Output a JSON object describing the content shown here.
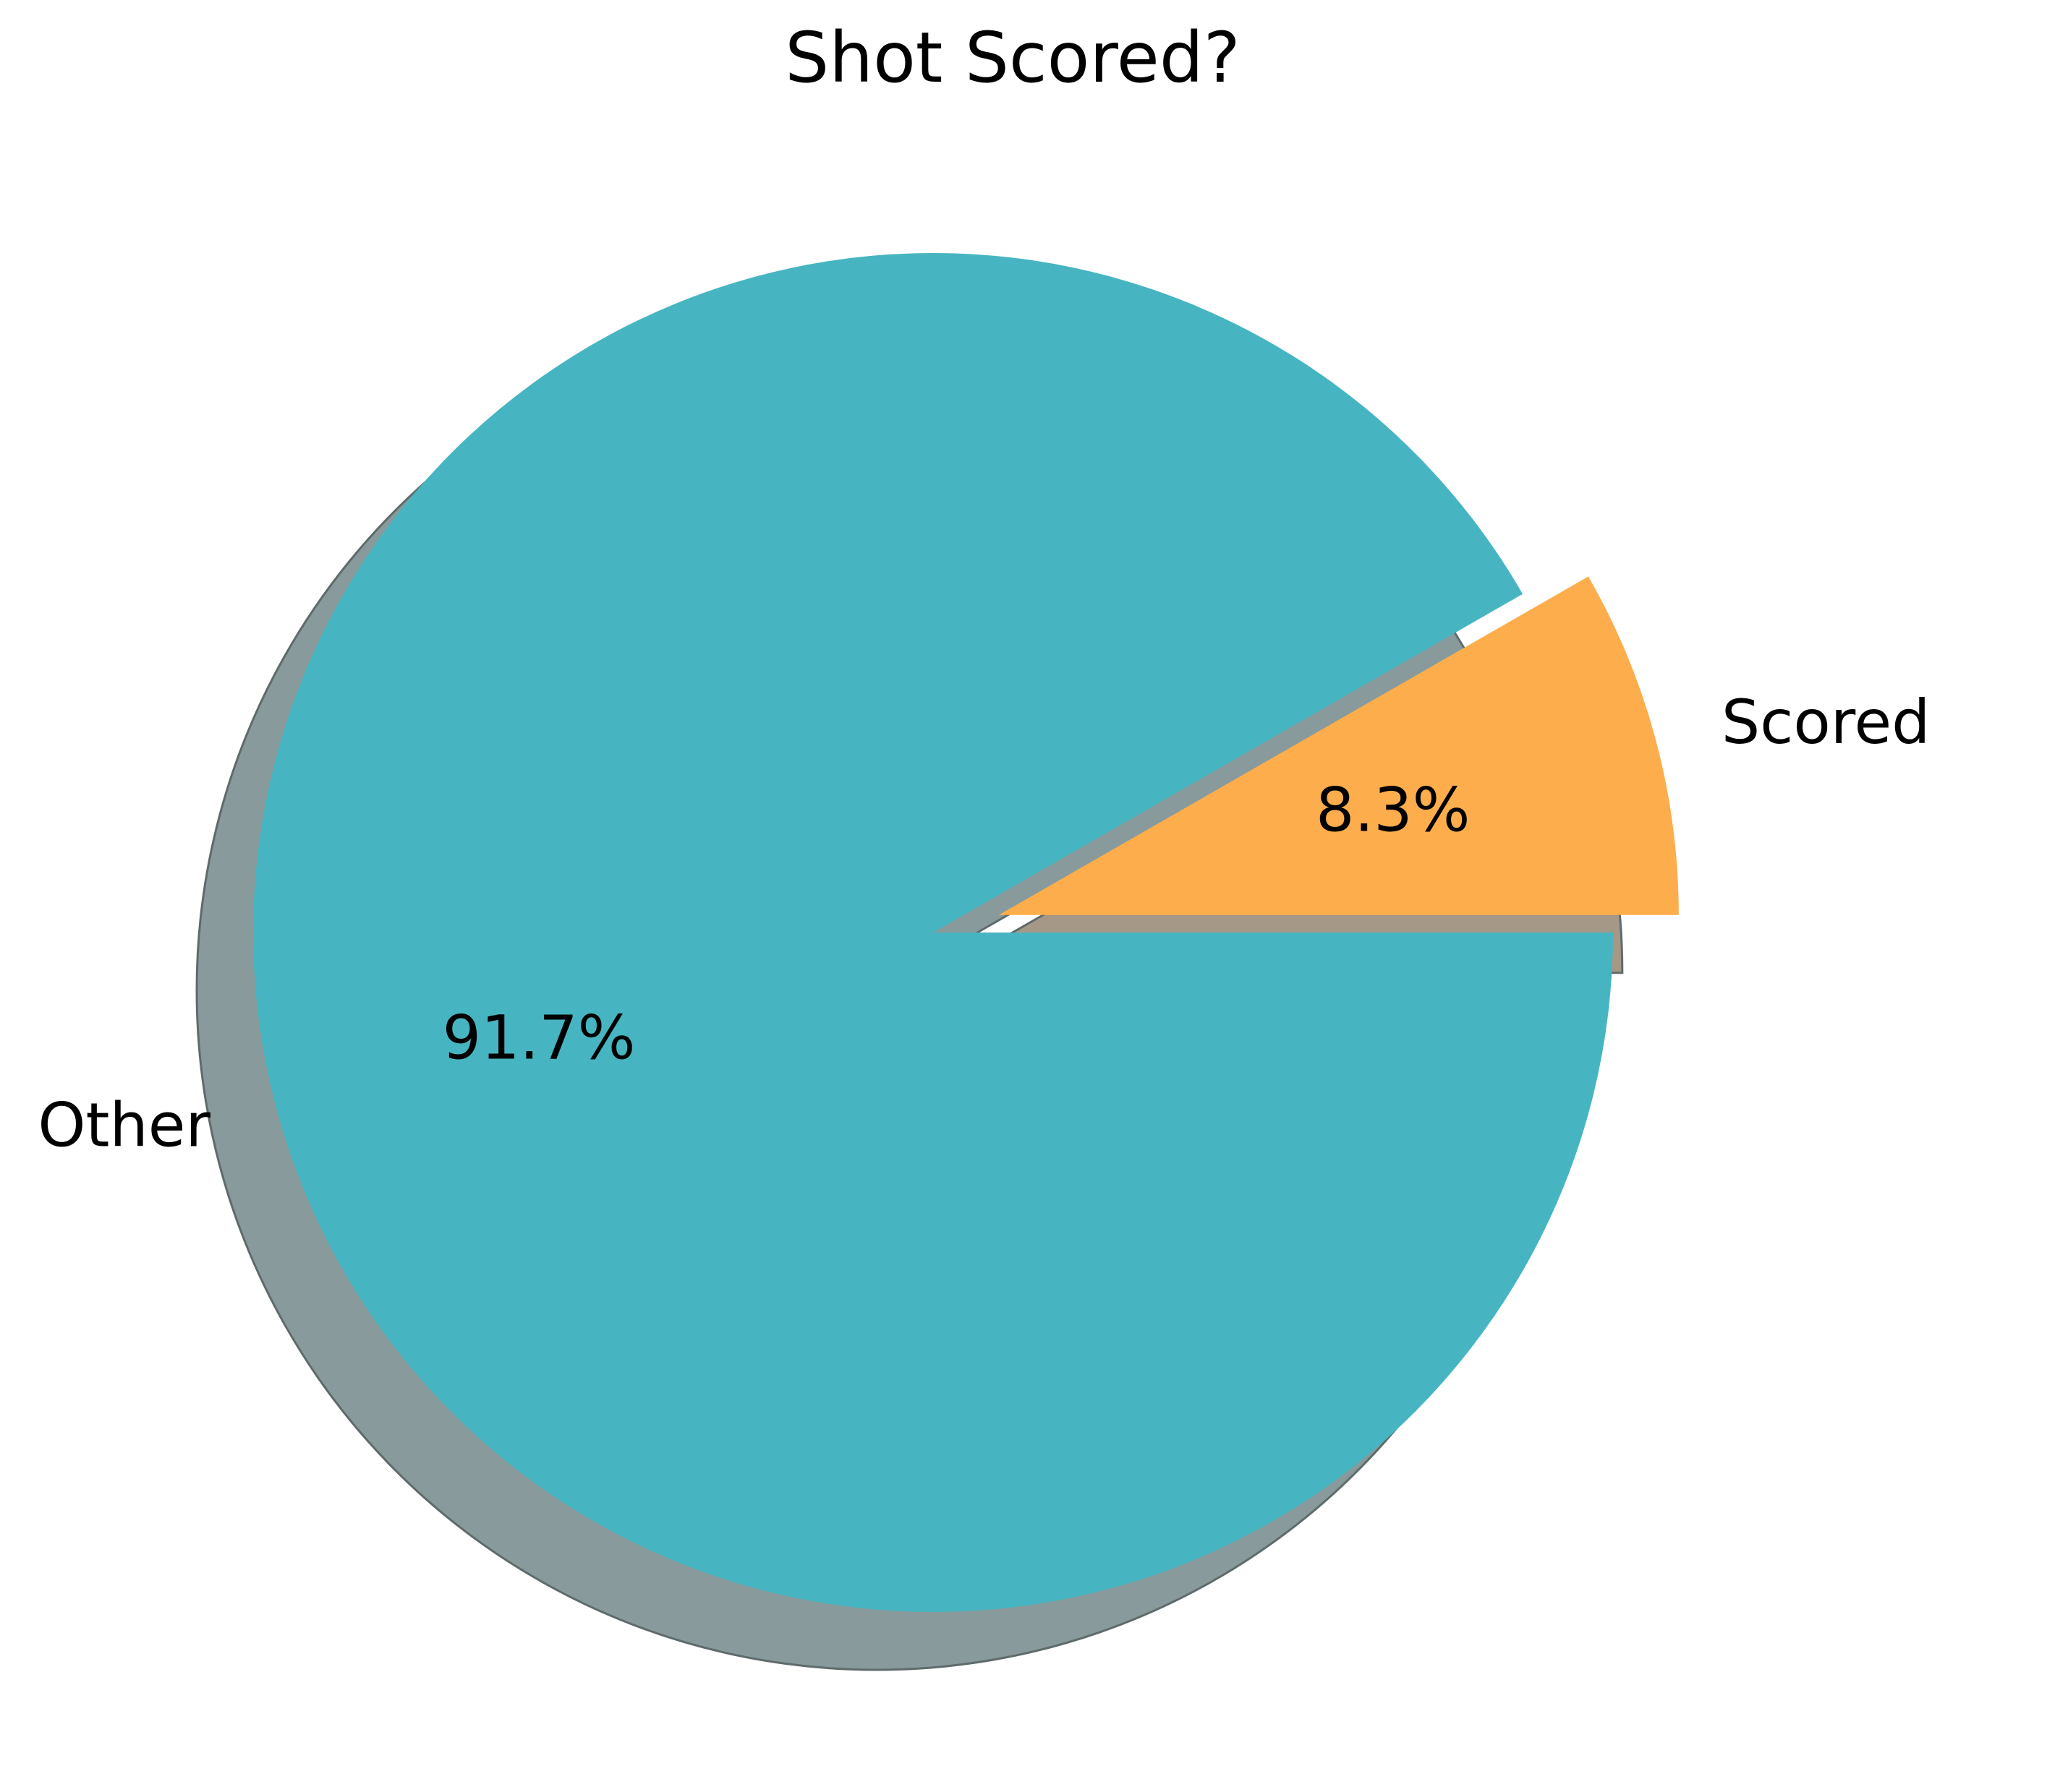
{
  "chart_data": {
    "type": "pie",
    "title": "Shot Scored?",
    "categories": [
      "Scored",
      "Other"
    ],
    "values": [
      8.3,
      91.7
    ],
    "value_labels": [
      "8.3%",
      "91.7%"
    ],
    "colors": [
      "#FDAD4B",
      "#47B5C1"
    ],
    "shadow_colors": [
      "#A59886",
      "#889A9C"
    ],
    "exploded": [
      true,
      false
    ],
    "shadow": true,
    "start_angle_deg": 0,
    "direction": "counterclockwise",
    "legend": "none"
  }
}
